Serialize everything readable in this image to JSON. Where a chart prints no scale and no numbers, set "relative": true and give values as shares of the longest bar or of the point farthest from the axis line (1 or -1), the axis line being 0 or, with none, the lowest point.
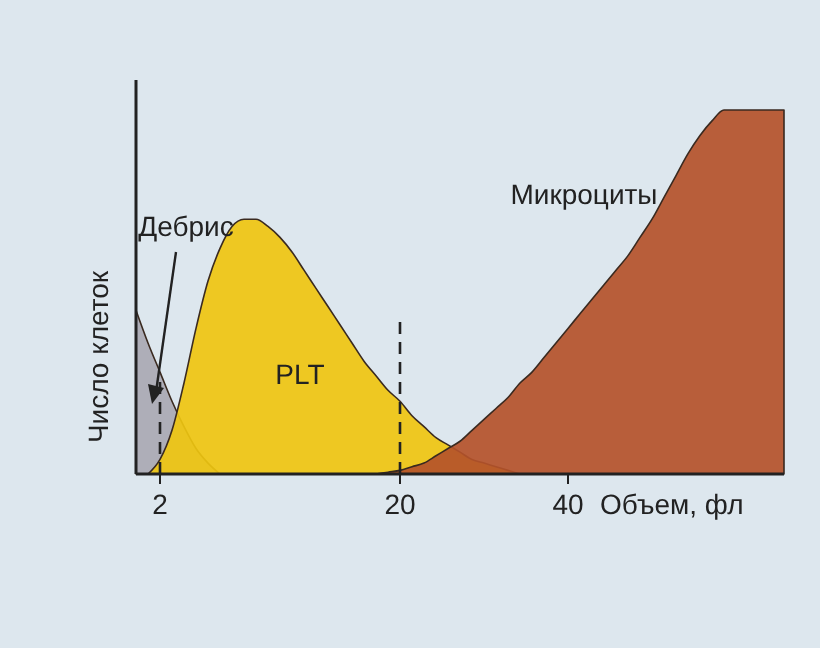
{
  "chart_data": {
    "type": "area",
    "relative": true,
    "xlabel": "Объем, фл",
    "ylabel": "Число клеток",
    "tick_labels": "x",
    "categories": [
      null,
      null,
      "2",
      null,
      null,
      null,
      null,
      null,
      null,
      null,
      null,
      null,
      null,
      null,
      null,
      null,
      null,
      null,
      null,
      null,
      null,
      null,
      "20",
      null,
      null,
      null,
      null,
      null,
      null,
      null,
      null,
      null,
      null,
      null,
      null,
      null,
      "40",
      null,
      null,
      null,
      null,
      null,
      null,
      null,
      null,
      null,
      null,
      null,
      null,
      null,
      null,
      null,
      null,
      null,
      null
    ],
    "series": [
      {
        "name": "Дебрис",
        "color": "#a9a9b3",
        "values": [
          0.45,
          0.36,
          0.28,
          0.2,
          0.13,
          0.07,
          0.03,
          0,
          null,
          null,
          null,
          null,
          null,
          null,
          null,
          null,
          null,
          null,
          null,
          null,
          null,
          null,
          null,
          null,
          null,
          null,
          null,
          null,
          null,
          null,
          null,
          null,
          null,
          null,
          null,
          null,
          null,
          null,
          null,
          null,
          null,
          null,
          null,
          null,
          null,
          null,
          null,
          null,
          null,
          null,
          null,
          null,
          null,
          null,
          null
        ]
      },
      {
        "name": "PLT",
        "color": "#efc510",
        "values": [
          null,
          0,
          0.04,
          0.12,
          0.25,
          0.4,
          0.53,
          0.62,
          0.68,
          0.7,
          0.7,
          0.68,
          0.65,
          0.61,
          0.56,
          0.51,
          0.46,
          0.41,
          0.36,
          0.31,
          0.27,
          0.23,
          0.2,
          0.16,
          0.13,
          0.1,
          0.08,
          0.06,
          0.04,
          0.03,
          0.02,
          0.01,
          0,
          null,
          null,
          null,
          null,
          null,
          null,
          null,
          null,
          null,
          null,
          null,
          null,
          null,
          null,
          null,
          null,
          null,
          null,
          null,
          null,
          null,
          null
        ]
      },
      {
        "name": "Микроциты",
        "color": "#b4522a",
        "values": [
          null,
          null,
          null,
          null,
          null,
          null,
          null,
          null,
          null,
          null,
          null,
          null,
          null,
          null,
          null,
          null,
          null,
          null,
          null,
          null,
          0,
          0.005,
          0.01,
          0.02,
          0.03,
          0.05,
          0.07,
          0.09,
          0.12,
          0.15,
          0.18,
          0.21,
          0.25,
          0.28,
          0.32,
          0.36,
          0.4,
          0.44,
          0.48,
          0.52,
          0.56,
          0.6,
          0.65,
          0.7,
          0.76,
          0.82,
          0.88,
          0.93,
          0.97,
          1,
          1,
          1,
          1,
          1,
          1
        ]
      }
    ],
    "ref_lines": [
      {
        "axis": "x",
        "value": "2",
        "line_style": "dashed"
      },
      {
        "axis": "x",
        "value": "20",
        "line_style": "dashed"
      }
    ]
  }
}
